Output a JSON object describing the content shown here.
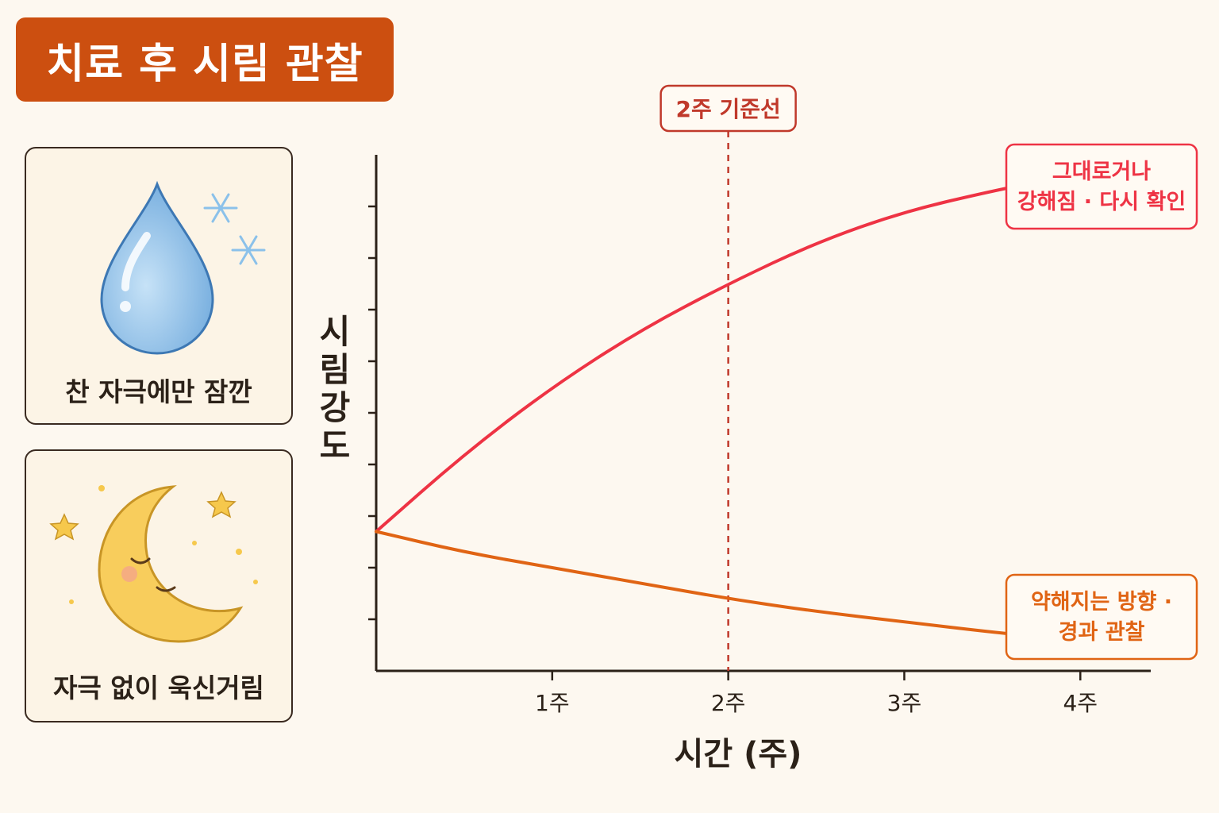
{
  "header": {
    "title": "치료 후 시림 관찰"
  },
  "cards": [
    {
      "label": "찬 자극에만 잠깐",
      "icon": "water-drop-snowflake-icon"
    },
    {
      "label": "자극 없이 욱신거림",
      "icon": "sleeping-moon-icon"
    }
  ],
  "colors": {
    "title_bg": "#cc4f10",
    "worsening": "#ee3344",
    "improving": "#e06414",
    "reference": "#c0392b",
    "axis": "#2b2118"
  },
  "chart_data": {
    "type": "line",
    "xlabel": "시간 (주)",
    "ylabel": "시림 강도",
    "x_ticks": [
      {
        "value": 1,
        "label": "1주"
      },
      {
        "value": 2,
        "label": "2주"
      },
      {
        "value": 3,
        "label": "3주"
      },
      {
        "value": 4,
        "label": "4주"
      }
    ],
    "xlim": [
      0,
      4.4
    ],
    "ylim": [
      0,
      10
    ],
    "y_tick_values": [
      1,
      2,
      3,
      4,
      5,
      6,
      7,
      8,
      9
    ],
    "reference_line": {
      "x": 2,
      "label": "2주 기준선"
    },
    "series": [
      {
        "key": "worsening",
        "label_lines": [
          "그대로거나",
          "강해짐 · 다시 확인"
        ],
        "x": [
          0,
          0.5,
          1,
          1.5,
          2,
          2.5,
          3,
          3.5,
          3.8
        ],
        "y": [
          2.7,
          4.2,
          5.5,
          6.6,
          7.5,
          8.3,
          8.9,
          9.3,
          9.5
        ]
      },
      {
        "key": "improving",
        "label_lines": [
          "약해지는 방향 ·",
          "경과 관찰"
        ],
        "x": [
          0,
          0.5,
          1,
          1.5,
          2,
          2.5,
          3,
          3.5,
          3.8
        ],
        "y": [
          2.7,
          2.3,
          2.0,
          1.7,
          1.4,
          1.15,
          0.95,
          0.75,
          0.65
        ]
      }
    ]
  }
}
